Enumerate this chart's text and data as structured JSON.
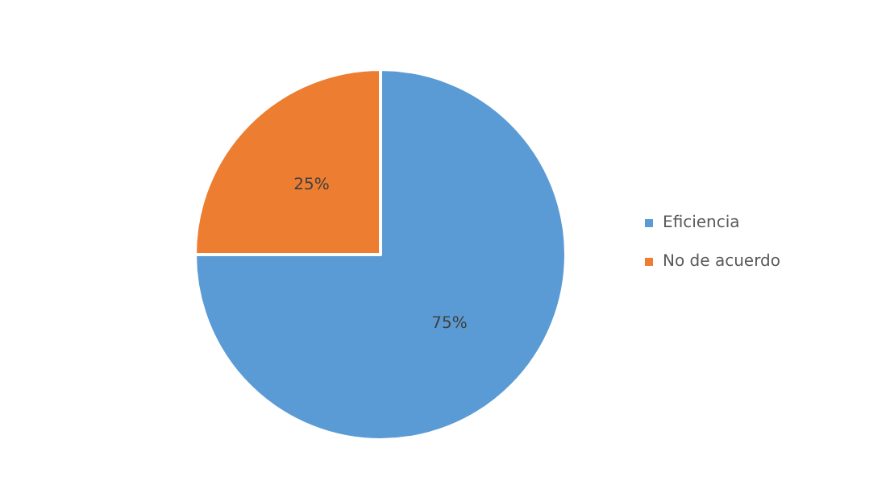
{
  "chart_data": {
    "type": "pie",
    "categories": [
      "Eficiencia",
      "No de acuerdo"
    ],
    "values": [
      75,
      25
    ],
    "colors": [
      "#5b9bd5",
      "#ed7d31"
    ],
    "value_labels": [
      "75%",
      "25%"
    ],
    "legend": "right"
  }
}
